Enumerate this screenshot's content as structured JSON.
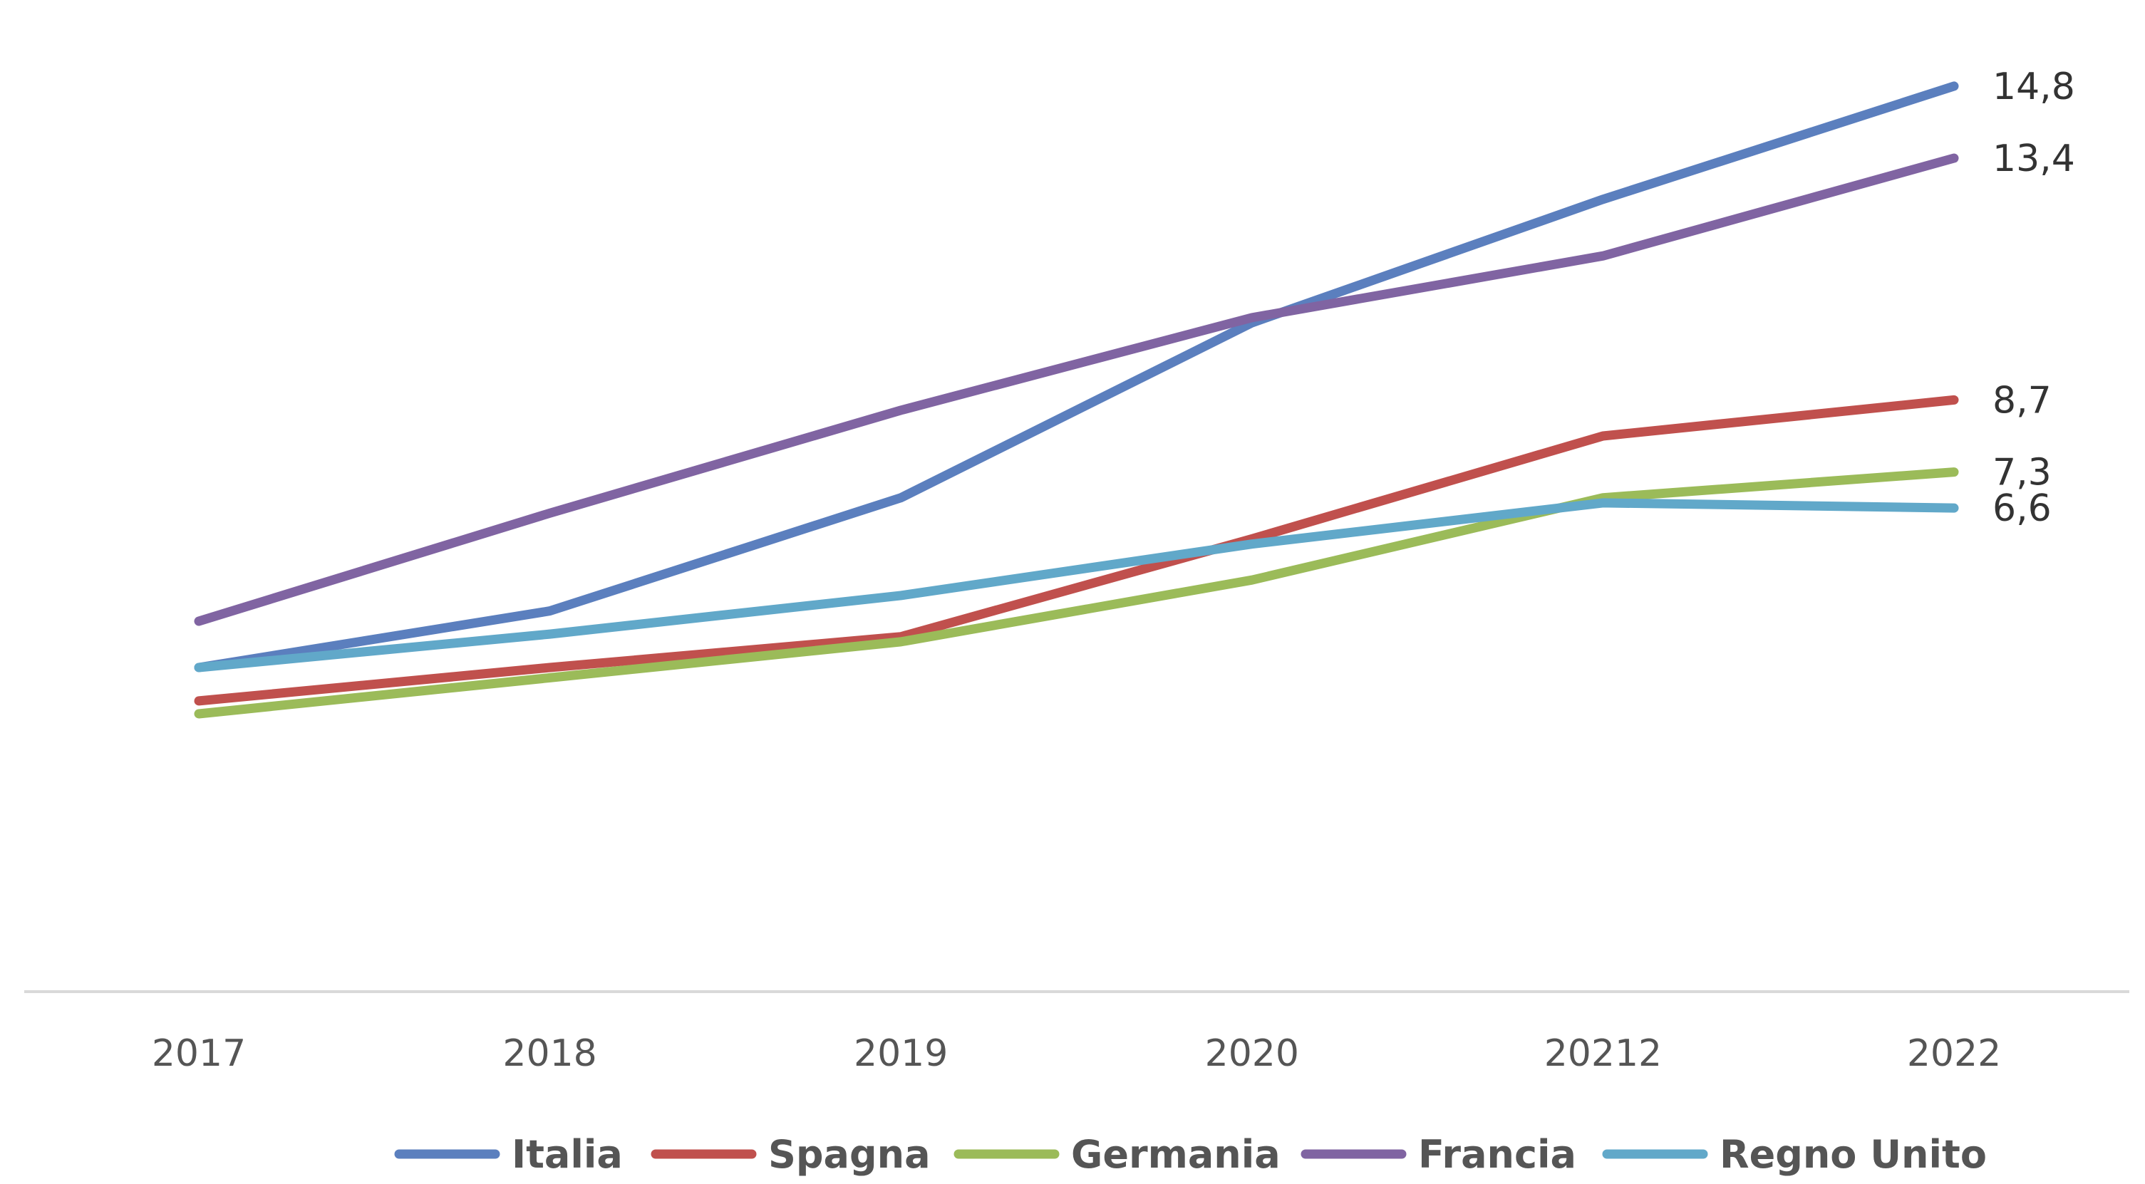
{
  "chart_data": {
    "type": "line",
    "categories": [
      "2017",
      "2018",
      "2019",
      "2020",
      "20212",
      "2022"
    ],
    "series": [
      {
        "name": "Italia",
        "color": "#5B7FBE",
        "values": [
          3.5,
          4.6,
          6.8,
          10.2,
          12.6,
          14.8
        ],
        "end_label": "14,8"
      },
      {
        "name": "Spagna",
        "color": "#C0504D",
        "values": [
          2.85,
          3.5,
          4.1,
          6.0,
          8.0,
          8.7
        ],
        "end_label": "8,7"
      },
      {
        "name": "Germania",
        "color": "#9BBB59",
        "values": [
          2.6,
          3.3,
          4.0,
          5.2,
          6.8,
          7.3
        ],
        "end_label": "7,3"
      },
      {
        "name": "Francia",
        "color": "#8064A2",
        "values": [
          4.4,
          6.5,
          8.5,
          10.3,
          11.5,
          13.4
        ],
        "end_label": "13,4"
      },
      {
        "name": "Regno Unito",
        "color": "#61A8C9",
        "values": [
          3.5,
          4.15,
          4.9,
          5.9,
          6.7,
          6.6
        ],
        "end_label": "6,6"
      }
    ],
    "ylim": [
      -2.8,
      15.2
    ],
    "grid": false,
    "legend_position": "bottom"
  }
}
